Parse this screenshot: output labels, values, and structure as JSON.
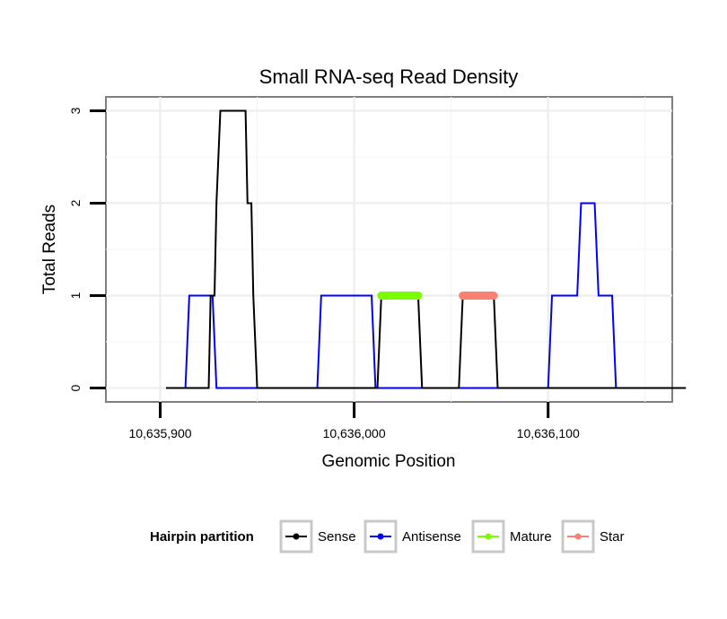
{
  "chart_data": {
    "type": "line",
    "title": "Small RNA-seq Read Density",
    "xlabel": "Genomic Position",
    "ylabel": "Total Reads",
    "xlim": [
      10635872,
      10636164
    ],
    "ylim": [
      -0.15,
      3.15
    ],
    "x_ticks": [
      10635900,
      10636000,
      10636100
    ],
    "x_tick_labels": [
      "10,635,900",
      "10,636,000",
      "10,636,100"
    ],
    "y_ticks": [
      0,
      1,
      2,
      3
    ],
    "y_tick_labels": [
      "0",
      "1",
      "2",
      "3"
    ],
    "grid": true,
    "legend": {
      "title": "Hairpin partition",
      "position": "bottom",
      "entries": [
        "Sense",
        "Antisense",
        "Mature",
        "Star"
      ]
    },
    "series": [
      {
        "name": "Sense",
        "color": "#000000",
        "width": 2,
        "x": [
          10635903,
          10635925,
          10635926,
          10635928,
          10635929,
          10635931,
          10635944,
          10635945,
          10635947,
          10635948,
          10635950,
          10636012,
          10636014,
          10636033,
          10636035,
          10636054,
          10636056,
          10636072,
          10636074,
          10636171
        ],
        "y": [
          0,
          0,
          1,
          1,
          2,
          3,
          3,
          2,
          2,
          1,
          0,
          0,
          1,
          1,
          0,
          0,
          1,
          1,
          0,
          0
        ]
      },
      {
        "name": "Antisense",
        "color": "#0000ff",
        "width": 2,
        "x": [
          10635903,
          10635913,
          10635915,
          10635927,
          10635929,
          10635981,
          10635983,
          10636009,
          10636011,
          10636100,
          10636102,
          10636115,
          10636117,
          10636124,
          10636126,
          10636133,
          10636135,
          10636171
        ],
        "y": [
          0,
          0,
          1,
          1,
          0,
          0,
          1,
          1,
          0,
          0,
          1,
          1,
          2,
          2,
          1,
          1,
          0,
          0
        ]
      },
      {
        "name": "Mature",
        "color": "#7cfc00",
        "width": 9,
        "x": [
          10636014,
          10636033
        ],
        "y": [
          1,
          1
        ]
      },
      {
        "name": "Star",
        "color": "#fa8072",
        "width": 9,
        "x": [
          10636056,
          10636072
        ],
        "y": [
          1,
          1
        ]
      }
    ]
  }
}
